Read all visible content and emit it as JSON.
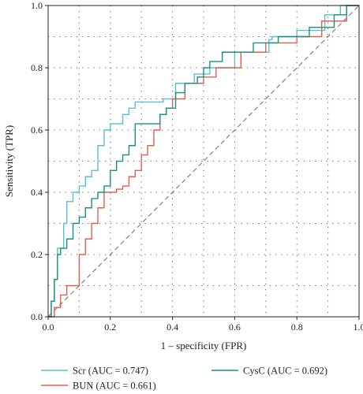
{
  "chart_data": {
    "type": "line",
    "xlabel": "1 – specificity (FPR)",
    "ylabel": "Sensitivity (TPR)",
    "xlim": [
      0,
      1
    ],
    "ylim": [
      0,
      1
    ],
    "xticks": [
      "0.0",
      "0.2",
      "0.4",
      "0.6",
      "0.8",
      "1.0"
    ],
    "yticks": [
      "0.0",
      "0.2",
      "0.4",
      "0.6",
      "0.8",
      "1.0"
    ],
    "grid": "dotted",
    "legend_position": "bottom",
    "reference_line": {
      "style": "dashed",
      "color": "#8a8a8a",
      "points": [
        [
          0,
          0
        ],
        [
          1,
          1
        ]
      ]
    },
    "series": [
      {
        "name": "Scr (AUC = 0.747)",
        "color": "#5bbfd3",
        "points": [
          [
            0,
            0
          ],
          [
            0.01,
            0
          ],
          [
            0.01,
            0.05
          ],
          [
            0.02,
            0.05
          ],
          [
            0.02,
            0.12
          ],
          [
            0.03,
            0.12
          ],
          [
            0.03,
            0.22
          ],
          [
            0.05,
            0.22
          ],
          [
            0.05,
            0.3
          ],
          [
            0.06,
            0.3
          ],
          [
            0.06,
            0.37
          ],
          [
            0.08,
            0.37
          ],
          [
            0.08,
            0.4
          ],
          [
            0.1,
            0.4
          ],
          [
            0.1,
            0.42
          ],
          [
            0.12,
            0.42
          ],
          [
            0.12,
            0.45
          ],
          [
            0.14,
            0.45
          ],
          [
            0.14,
            0.47
          ],
          [
            0.16,
            0.47
          ],
          [
            0.16,
            0.55
          ],
          [
            0.18,
            0.55
          ],
          [
            0.18,
            0.6
          ],
          [
            0.2,
            0.6
          ],
          [
            0.2,
            0.62
          ],
          [
            0.24,
            0.62
          ],
          [
            0.24,
            0.65
          ],
          [
            0.26,
            0.65
          ],
          [
            0.26,
            0.67
          ],
          [
            0.28,
            0.67
          ],
          [
            0.28,
            0.69
          ],
          [
            0.31,
            0.69
          ],
          [
            0.31,
            0.69
          ],
          [
            0.37,
            0.69
          ],
          [
            0.37,
            0.7
          ],
          [
            0.41,
            0.7
          ],
          [
            0.41,
            0.75
          ],
          [
            0.47,
            0.75
          ],
          [
            0.47,
            0.78
          ],
          [
            0.52,
            0.78
          ],
          [
            0.52,
            0.8
          ],
          [
            0.6,
            0.8
          ],
          [
            0.6,
            0.85
          ],
          [
            0.71,
            0.85
          ],
          [
            0.71,
            0.89
          ],
          [
            0.72,
            0.89
          ],
          [
            0.72,
            0.9
          ],
          [
            0.8,
            0.9
          ],
          [
            0.8,
            0.92
          ],
          [
            0.89,
            0.92
          ],
          [
            0.89,
            0.97
          ],
          [
            0.94,
            0.97
          ],
          [
            0.94,
            1.0
          ],
          [
            1.0,
            1.0
          ]
        ]
      },
      {
        "name": "BUN (AUC = 0.661)",
        "color": "#e06050",
        "points": [
          [
            0,
            0
          ],
          [
            0.02,
            0
          ],
          [
            0.02,
            0.03
          ],
          [
            0.04,
            0.03
          ],
          [
            0.04,
            0.07
          ],
          [
            0.06,
            0.07
          ],
          [
            0.06,
            0.1
          ],
          [
            0.1,
            0.1
          ],
          [
            0.1,
            0.2
          ],
          [
            0.12,
            0.2
          ],
          [
            0.12,
            0.25
          ],
          [
            0.14,
            0.25
          ],
          [
            0.14,
            0.3
          ],
          [
            0.16,
            0.3
          ],
          [
            0.16,
            0.35
          ],
          [
            0.18,
            0.35
          ],
          [
            0.18,
            0.4
          ],
          [
            0.22,
            0.4
          ],
          [
            0.22,
            0.41
          ],
          [
            0.24,
            0.41
          ],
          [
            0.24,
            0.42
          ],
          [
            0.26,
            0.42
          ],
          [
            0.26,
            0.45
          ],
          [
            0.28,
            0.45
          ],
          [
            0.28,
            0.47
          ],
          [
            0.3,
            0.47
          ],
          [
            0.3,
            0.52
          ],
          [
            0.32,
            0.52
          ],
          [
            0.32,
            0.55
          ],
          [
            0.34,
            0.55
          ],
          [
            0.34,
            0.6
          ],
          [
            0.36,
            0.6
          ],
          [
            0.36,
            0.65
          ],
          [
            0.38,
            0.65
          ],
          [
            0.38,
            0.67
          ],
          [
            0.4,
            0.67
          ],
          [
            0.4,
            0.7
          ],
          [
            0.44,
            0.7
          ],
          [
            0.44,
            0.75
          ],
          [
            0.5,
            0.75
          ],
          [
            0.5,
            0.77
          ],
          [
            0.54,
            0.77
          ],
          [
            0.54,
            0.8
          ],
          [
            0.62,
            0.8
          ],
          [
            0.62,
            0.85
          ],
          [
            0.7,
            0.85
          ],
          [
            0.7,
            0.88
          ],
          [
            0.8,
            0.88
          ],
          [
            0.8,
            0.9
          ],
          [
            0.88,
            0.9
          ],
          [
            0.88,
            0.95
          ],
          [
            0.96,
            0.95
          ],
          [
            0.96,
            1.0
          ],
          [
            1.0,
            1.0
          ]
        ]
      },
      {
        "name": "CysC (AUC = 0.692)",
        "color": "#1a9080",
        "points": [
          [
            0,
            0
          ],
          [
            0.01,
            0
          ],
          [
            0.01,
            0.05
          ],
          [
            0.02,
            0.05
          ],
          [
            0.02,
            0.12
          ],
          [
            0.03,
            0.12
          ],
          [
            0.03,
            0.2
          ],
          [
            0.04,
            0.2
          ],
          [
            0.04,
            0.22
          ],
          [
            0.06,
            0.22
          ],
          [
            0.06,
            0.25
          ],
          [
            0.08,
            0.25
          ],
          [
            0.08,
            0.3
          ],
          [
            0.1,
            0.3
          ],
          [
            0.1,
            0.32
          ],
          [
            0.12,
            0.32
          ],
          [
            0.12,
            0.35
          ],
          [
            0.14,
            0.35
          ],
          [
            0.14,
            0.38
          ],
          [
            0.16,
            0.38
          ],
          [
            0.16,
            0.4
          ],
          [
            0.18,
            0.4
          ],
          [
            0.18,
            0.42
          ],
          [
            0.2,
            0.42
          ],
          [
            0.2,
            0.47
          ],
          [
            0.22,
            0.47
          ],
          [
            0.22,
            0.5
          ],
          [
            0.24,
            0.5
          ],
          [
            0.24,
            0.52
          ],
          [
            0.26,
            0.52
          ],
          [
            0.26,
            0.55
          ],
          [
            0.28,
            0.55
          ],
          [
            0.28,
            0.62
          ],
          [
            0.3,
            0.62
          ],
          [
            0.3,
            0.62
          ],
          [
            0.36,
            0.62
          ],
          [
            0.36,
            0.65
          ],
          [
            0.38,
            0.65
          ],
          [
            0.38,
            0.67
          ],
          [
            0.41,
            0.67
          ],
          [
            0.41,
            0.72
          ],
          [
            0.44,
            0.72
          ],
          [
            0.44,
            0.75
          ],
          [
            0.48,
            0.75
          ],
          [
            0.48,
            0.77
          ],
          [
            0.5,
            0.77
          ],
          [
            0.5,
            0.8
          ],
          [
            0.52,
            0.8
          ],
          [
            0.52,
            0.82
          ],
          [
            0.56,
            0.82
          ],
          [
            0.56,
            0.85
          ],
          [
            0.66,
            0.85
          ],
          [
            0.66,
            0.88
          ],
          [
            0.74,
            0.88
          ],
          [
            0.74,
            0.9
          ],
          [
            0.84,
            0.9
          ],
          [
            0.84,
            0.93
          ],
          [
            0.92,
            0.93
          ],
          [
            0.92,
            0.97
          ],
          [
            0.96,
            0.97
          ],
          [
            0.96,
            1.0
          ],
          [
            1.0,
            1.0
          ]
        ]
      }
    ]
  }
}
